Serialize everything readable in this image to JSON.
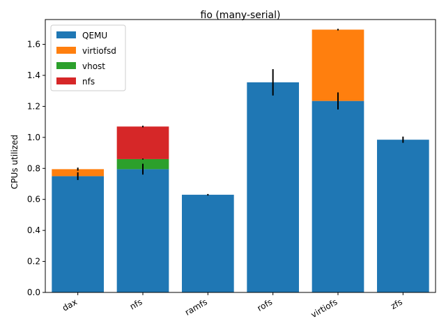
{
  "chart_data": {
    "type": "bar",
    "stacked": true,
    "title": "fio (many-serial)",
    "xlabel": "",
    "ylabel": "CPUs utilized",
    "categories": [
      "dax",
      "nfs",
      "ramfs",
      "rofs",
      "virtiofs",
      "zfs"
    ],
    "ylim": [
      0,
      1.76
    ],
    "yticks": [
      0.0,
      0.2,
      0.4,
      0.6,
      0.8,
      1.0,
      1.2,
      1.4,
      1.6
    ],
    "ytick_labels": [
      "0.0",
      "0.2",
      "0.4",
      "0.6",
      "0.8",
      "1.0",
      "1.2",
      "1.4",
      "1.6"
    ],
    "series": [
      {
        "name": "QEMU",
        "color": "#1f77b4",
        "values": [
          0.75,
          0.795,
          0.63,
          1.355,
          1.235,
          0.985
        ],
        "errors": [
          0.025,
          0.035,
          0.005,
          0.085,
          0.055,
          0.02
        ]
      },
      {
        "name": "virtiofsd",
        "color": "#ff7f0e",
        "values": [
          0.045,
          0,
          0,
          0,
          0.46,
          0
        ],
        "errors": [
          0.01,
          0,
          0,
          0,
          0.005,
          0
        ]
      },
      {
        "name": "vhost",
        "color": "#2ca02c",
        "values": [
          0,
          0.065,
          0,
          0,
          0,
          0
        ],
        "errors": [
          0,
          0.003,
          0,
          0,
          0,
          0
        ]
      },
      {
        "name": "nfs",
        "color": "#d62728",
        "values": [
          0,
          0.21,
          0,
          0,
          0,
          0
        ],
        "errors": [
          0,
          0.005,
          0,
          0,
          0,
          0
        ]
      }
    ],
    "legend_position": "top-left",
    "grid": false
  }
}
